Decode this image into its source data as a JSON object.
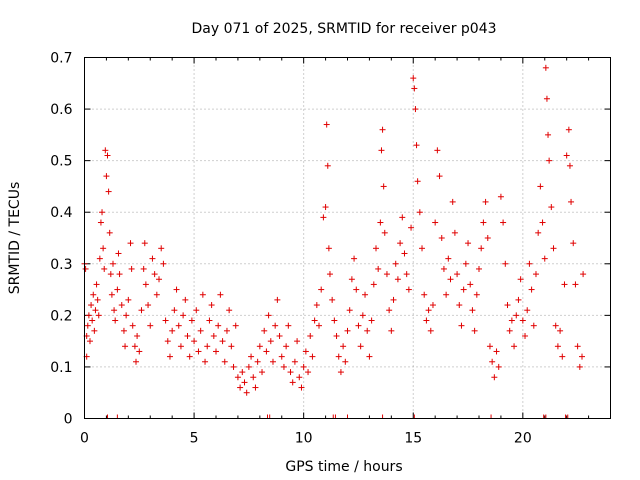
{
  "chart_data": {
    "type": "scatter",
    "title": "Day 071 of 2025, SRMTID for receiver p043",
    "xlabel": "GPS time / hours",
    "ylabel": "SRMTID / TECUs",
    "xlim": [
      0,
      24
    ],
    "ylim": [
      0,
      0.7
    ],
    "x_ticks": [
      0,
      5,
      10,
      15,
      20
    ],
    "x_tick_labels": [
      "0",
      "5",
      "10",
      "15",
      "20"
    ],
    "y_ticks": [
      0,
      0.1,
      0.2,
      0.3,
      0.4,
      0.5,
      0.6,
      0.7
    ],
    "y_tick_labels": [
      "0",
      "0.1",
      "0.2",
      "0.3",
      "0.4",
      "0.5",
      "0.6",
      "0.7"
    ],
    "grid": true,
    "marker": "plus",
    "color": "#e00000",
    "series": [
      {
        "name": "SRMTID",
        "points": [
          [
            0.0,
            0.3
          ],
          [
            0.05,
            0.29
          ],
          [
            0.1,
            0.16
          ],
          [
            0.1,
            0.12
          ],
          [
            0.15,
            0.18
          ],
          [
            0.2,
            0.2
          ],
          [
            0.25,
            0.15
          ],
          [
            0.3,
            0.22
          ],
          [
            0.35,
            0.19
          ],
          [
            0.4,
            0.24
          ],
          [
            0.45,
            0.17
          ],
          [
            0.5,
            0.21
          ],
          [
            0.55,
            0.26
          ],
          [
            0.6,
            0.23
          ],
          [
            0.65,
            0.2
          ],
          [
            0.7,
            0.31
          ],
          [
            0.75,
            0.38
          ],
          [
            0.8,
            0.4
          ],
          [
            0.85,
            0.33
          ],
          [
            0.9,
            0.29
          ],
          [
            0.95,
            0.52
          ],
          [
            1.0,
            0.47
          ],
          [
            1.05,
            0.51
          ],
          [
            1.1,
            0.44
          ],
          [
            1.15,
            0.36
          ],
          [
            1.2,
            0.28
          ],
          [
            1.25,
            0.24
          ],
          [
            1.3,
            0.3
          ],
          [
            1.35,
            0.21
          ],
          [
            1.4,
            0.19
          ],
          [
            1.5,
            0.25
          ],
          [
            1.55,
            0.32
          ],
          [
            1.6,
            0.28
          ],
          [
            1.7,
            0.22
          ],
          [
            1.8,
            0.17
          ],
          [
            1.85,
            0.14
          ],
          [
            1.9,
            0.2
          ],
          [
            2.0,
            0.23
          ],
          [
            2.1,
            0.34
          ],
          [
            2.15,
            0.29
          ],
          [
            2.2,
            0.18
          ],
          [
            2.3,
            0.14
          ],
          [
            2.35,
            0.11
          ],
          [
            2.4,
            0.16
          ],
          [
            2.5,
            0.13
          ],
          [
            2.6,
            0.21
          ],
          [
            2.7,
            0.29
          ],
          [
            2.75,
            0.34
          ],
          [
            2.8,
            0.26
          ],
          [
            2.9,
            0.22
          ],
          [
            3.0,
            0.18
          ],
          [
            3.1,
            0.31
          ],
          [
            3.2,
            0.28
          ],
          [
            3.3,
            0.24
          ],
          [
            3.4,
            0.27
          ],
          [
            3.5,
            0.33
          ],
          [
            3.6,
            0.3
          ],
          [
            3.7,
            0.19
          ],
          [
            3.8,
            0.15
          ],
          [
            3.9,
            0.12
          ],
          [
            4.0,
            0.17
          ],
          [
            4.1,
            0.21
          ],
          [
            4.2,
            0.25
          ],
          [
            4.3,
            0.18
          ],
          [
            4.4,
            0.14
          ],
          [
            4.5,
            0.2
          ],
          [
            4.6,
            0.23
          ],
          [
            4.7,
            0.16
          ],
          [
            4.8,
            0.12
          ],
          [
            4.9,
            0.19
          ],
          [
            5.0,
            0.15
          ],
          [
            5.1,
            0.21
          ],
          [
            5.2,
            0.13
          ],
          [
            5.3,
            0.17
          ],
          [
            5.4,
            0.24
          ],
          [
            5.5,
            0.11
          ],
          [
            5.6,
            0.14
          ],
          [
            5.7,
            0.19
          ],
          [
            5.8,
            0.22
          ],
          [
            5.9,
            0.16
          ],
          [
            6.0,
            0.13
          ],
          [
            6.1,
            0.18
          ],
          [
            6.2,
            0.24
          ],
          [
            6.3,
            0.15
          ],
          [
            6.4,
            0.11
          ],
          [
            6.5,
            0.17
          ],
          [
            6.6,
            0.21
          ],
          [
            6.7,
            0.14
          ],
          [
            6.8,
            0.1
          ],
          [
            6.9,
            0.18
          ],
          [
            7.0,
            0.08
          ],
          [
            7.1,
            0.06
          ],
          [
            7.2,
            0.09
          ],
          [
            7.3,
            0.07
          ],
          [
            7.4,
            0.05
          ],
          [
            7.5,
            0.1
          ],
          [
            7.6,
            0.12
          ],
          [
            7.7,
            0.08
          ],
          [
            7.8,
            0.06
          ],
          [
            7.9,
            0.11
          ],
          [
            8.0,
            0.14
          ],
          [
            8.1,
            0.09
          ],
          [
            8.2,
            0.17
          ],
          [
            8.3,
            0.13
          ],
          [
            8.4,
            0.2
          ],
          [
            8.5,
            0.15
          ],
          [
            8.6,
            0.11
          ],
          [
            8.7,
            0.18
          ],
          [
            8.8,
            0.23
          ],
          [
            8.9,
            0.16
          ],
          [
            9.0,
            0.12
          ],
          [
            9.1,
            0.1
          ],
          [
            9.2,
            0.14
          ],
          [
            9.3,
            0.18
          ],
          [
            9.4,
            0.09
          ],
          [
            9.5,
            0.07
          ],
          [
            9.6,
            0.11
          ],
          [
            9.7,
            0.15
          ],
          [
            9.8,
            0.08
          ],
          [
            9.9,
            0.06
          ],
          [
            10.0,
            0.1
          ],
          [
            10.1,
            0.13
          ],
          [
            10.2,
            0.09
          ],
          [
            10.3,
            0.16
          ],
          [
            10.4,
            0.12
          ],
          [
            10.5,
            0.19
          ],
          [
            10.6,
            0.22
          ],
          [
            10.7,
            0.18
          ],
          [
            10.8,
            0.25
          ],
          [
            10.9,
            0.39
          ],
          [
            11.0,
            0.41
          ],
          [
            11.05,
            0.57
          ],
          [
            11.1,
            0.49
          ],
          [
            11.15,
            0.33
          ],
          [
            11.2,
            0.28
          ],
          [
            11.3,
            0.23
          ],
          [
            11.4,
            0.19
          ],
          [
            11.5,
            0.16
          ],
          [
            11.6,
            0.12
          ],
          [
            11.7,
            0.09
          ],
          [
            11.8,
            0.14
          ],
          [
            11.9,
            0.11
          ],
          [
            12.0,
            0.17
          ],
          [
            12.1,
            0.21
          ],
          [
            12.2,
            0.27
          ],
          [
            12.3,
            0.31
          ],
          [
            12.4,
            0.25
          ],
          [
            12.5,
            0.18
          ],
          [
            12.6,
            0.14
          ],
          [
            12.7,
            0.2
          ],
          [
            12.8,
            0.24
          ],
          [
            12.9,
            0.17
          ],
          [
            13.0,
            0.12
          ],
          [
            13.1,
            0.19
          ],
          [
            13.2,
            0.26
          ],
          [
            13.3,
            0.33
          ],
          [
            13.4,
            0.29
          ],
          [
            13.5,
            0.38
          ],
          [
            13.55,
            0.52
          ],
          [
            13.6,
            0.56
          ],
          [
            13.65,
            0.45
          ],
          [
            13.7,
            0.36
          ],
          [
            13.8,
            0.28
          ],
          [
            13.9,
            0.21
          ],
          [
            14.0,
            0.17
          ],
          [
            14.1,
            0.23
          ],
          [
            14.2,
            0.3
          ],
          [
            14.3,
            0.27
          ],
          [
            14.4,
            0.34
          ],
          [
            14.5,
            0.39
          ],
          [
            14.6,
            0.32
          ],
          [
            14.7,
            0.28
          ],
          [
            14.8,
            0.25
          ],
          [
            14.9,
            0.37
          ],
          [
            15.0,
            0.66
          ],
          [
            15.05,
            0.64
          ],
          [
            15.1,
            0.6
          ],
          [
            15.15,
            0.53
          ],
          [
            15.2,
            0.46
          ],
          [
            15.3,
            0.4
          ],
          [
            15.4,
            0.33
          ],
          [
            15.5,
            0.24
          ],
          [
            15.6,
            0.19
          ],
          [
            15.7,
            0.21
          ],
          [
            15.8,
            0.17
          ],
          [
            15.9,
            0.22
          ],
          [
            16.0,
            0.38
          ],
          [
            16.1,
            0.52
          ],
          [
            16.2,
            0.47
          ],
          [
            16.3,
            0.35
          ],
          [
            16.4,
            0.29
          ],
          [
            16.5,
            0.24
          ],
          [
            16.6,
            0.31
          ],
          [
            16.7,
            0.27
          ],
          [
            16.8,
            0.42
          ],
          [
            16.9,
            0.36
          ],
          [
            17.0,
            0.28
          ],
          [
            17.1,
            0.22
          ],
          [
            17.2,
            0.18
          ],
          [
            17.3,
            0.25
          ],
          [
            17.4,
            0.3
          ],
          [
            17.5,
            0.34
          ],
          [
            17.6,
            0.26
          ],
          [
            17.7,
            0.21
          ],
          [
            17.8,
            0.17
          ],
          [
            17.9,
            0.24
          ],
          [
            18.0,
            0.29
          ],
          [
            18.1,
            0.33
          ],
          [
            18.2,
            0.38
          ],
          [
            18.3,
            0.42
          ],
          [
            18.4,
            0.35
          ],
          [
            18.5,
            0.14
          ],
          [
            18.6,
            0.11
          ],
          [
            18.7,
            0.08
          ],
          [
            18.8,
            0.13
          ],
          [
            18.9,
            0.1
          ],
          [
            19.0,
            0.43
          ],
          [
            19.1,
            0.38
          ],
          [
            19.2,
            0.3
          ],
          [
            19.3,
            0.22
          ],
          [
            19.4,
            0.17
          ],
          [
            19.5,
            0.19
          ],
          [
            19.6,
            0.14
          ],
          [
            19.7,
            0.2
          ],
          [
            19.8,
            0.23
          ],
          [
            19.9,
            0.27
          ],
          [
            20.0,
            0.19
          ],
          [
            20.1,
            0.16
          ],
          [
            20.2,
            0.21
          ],
          [
            20.3,
            0.3
          ],
          [
            20.4,
            0.25
          ],
          [
            20.5,
            0.18
          ],
          [
            20.6,
            0.28
          ],
          [
            20.7,
            0.36
          ],
          [
            20.8,
            0.45
          ],
          [
            20.9,
            0.38
          ],
          [
            21.0,
            0.31
          ],
          [
            21.05,
            0.68
          ],
          [
            21.1,
            0.62
          ],
          [
            21.15,
            0.55
          ],
          [
            21.2,
            0.5
          ],
          [
            21.3,
            0.41
          ],
          [
            21.4,
            0.33
          ],
          [
            21.5,
            0.18
          ],
          [
            21.6,
            0.14
          ],
          [
            21.7,
            0.17
          ],
          [
            21.8,
            0.12
          ],
          [
            21.9,
            0.26
          ],
          [
            22.0,
            0.51
          ],
          [
            22.1,
            0.56
          ],
          [
            22.15,
            0.49
          ],
          [
            22.2,
            0.42
          ],
          [
            22.3,
            0.34
          ],
          [
            22.4,
            0.26
          ],
          [
            22.5,
            0.14
          ],
          [
            22.6,
            0.1
          ],
          [
            22.7,
            0.12
          ],
          [
            22.75,
            0.28
          ]
        ]
      }
    ],
    "zero_markers_x": [
      1.05,
      1.5,
      8.35,
      8.45,
      11.35,
      11.45,
      12.0,
      13.6,
      15.05,
      18.55,
      20.95,
      21.05,
      21.95,
      22.05
    ]
  }
}
